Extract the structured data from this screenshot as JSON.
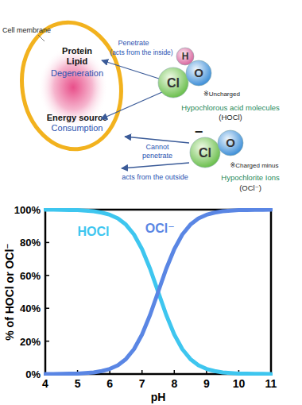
{
  "diagram": {
    "cell_label": "Cell membrane",
    "inside_top": [
      "Protein",
      "Lipid"
    ],
    "inside_top_effect": "Degeneration",
    "inside_bottom": "Energy source",
    "inside_bottom_effect": "Consumption",
    "hocl": {
      "atoms": [
        "H",
        "Cl",
        "O"
      ],
      "charge_note": "※Uncharged",
      "name": "Hypochlorous acid molecules",
      "formula": "(HOCl)",
      "arrow_labels": [
        "Penetrate",
        "(acts from the inside)"
      ]
    },
    "ocl": {
      "atoms": [
        "Cl",
        "O"
      ],
      "charge": "−",
      "charge_note": "※Charged minus",
      "name": "Hypochlorite Ions",
      "formula": "(OCl⁻)",
      "arrow_labels": [
        "Cannot",
        "penetrate"
      ],
      "outside_label": "acts from the outside"
    }
  },
  "chart_data": {
    "type": "line",
    "xlabel": "pH",
    "ylabel": "% of HOCl or OCl⁻",
    "x": [
      4,
      4.25,
      4.5,
      4.75,
      5,
      5.25,
      5.5,
      5.75,
      6,
      6.25,
      6.5,
      6.75,
      7,
      7.25,
      7.5,
      7.75,
      8,
      8.25,
      8.5,
      8.75,
      9,
      9.25,
      9.5,
      9.75,
      10,
      10.25,
      10.5,
      10.75,
      11
    ],
    "series": [
      {
        "name": "HOCl",
        "color": "#3ec6ef",
        "values": [
          100,
          100,
          99.9,
          99.8,
          99.7,
          99.4,
          99,
          98.2,
          96.9,
          94.7,
          90.9,
          84.9,
          76,
          64,
          50,
          36,
          24,
          15.1,
          9.1,
          5.3,
          3.1,
          1.8,
          1,
          0.6,
          0.3,
          0.2,
          0.1,
          0.1,
          0
        ]
      },
      {
        "name": "OCl⁻",
        "color": "#5a86e4",
        "values": [
          0,
          0,
          0.1,
          0.2,
          0.3,
          0.6,
          1,
          1.8,
          3.1,
          5.3,
          9.1,
          15.1,
          24,
          36,
          50,
          64,
          76,
          84.9,
          90.9,
          94.7,
          96.9,
          98.2,
          99,
          99.4,
          99.7,
          99.8,
          99.9,
          99.9,
          100
        ]
      }
    ],
    "xlim": [
      4,
      11
    ],
    "ylim": [
      0,
      100
    ],
    "xticks": [
      4,
      5,
      6,
      7,
      8,
      9,
      10,
      11
    ],
    "yticks": [
      {
        "value": 0,
        "label": "0%"
      },
      {
        "value": 20,
        "label": "20%"
      },
      {
        "value": 40,
        "label": "40%"
      },
      {
        "value": 60,
        "label": "60%"
      },
      {
        "value": 80,
        "label": "80%"
      },
      {
        "value": 100,
        "label": "100%"
      }
    ],
    "grid": false
  }
}
